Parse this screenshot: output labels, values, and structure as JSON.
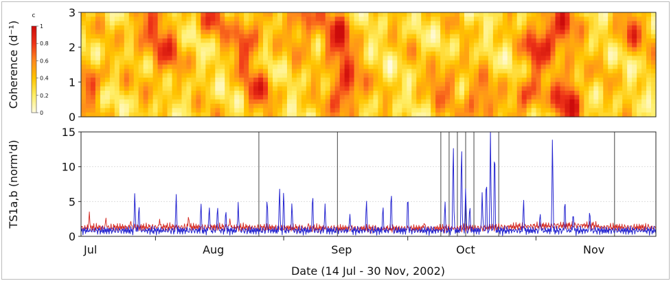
{
  "chart_data": [
    {
      "type": "heatmap",
      "ylabel": "Coherence (d⁻¹)",
      "y_ticks": [
        "0",
        "1",
        "2",
        "3"
      ],
      "ylim": [
        0,
        3
      ],
      "colorbar": {
        "label": "c",
        "ticks": [
          "0",
          "0.2",
          "0.4",
          "0.6",
          "0.8",
          "1"
        ],
        "range": [
          0,
          1
        ],
        "colors": [
          "#fffbe0",
          "#ffee66",
          "#ffc400",
          "#ff8a1e",
          "#ee3318",
          "#cc0b0b"
        ]
      },
      "x_range": [
        "2002-07-14",
        "2002-11-30"
      ],
      "note_cells": "coherence values shown as a dense patchy field, mostly 0.2-0.6 with high patches (0.8-1) around late Jul, mid Aug, early-mid Sep, mid Oct and early-mid Nov"
    },
    {
      "type": "line",
      "ylabel": "TS1a,b (norm'd)",
      "y_ticks": [
        "0",
        "5",
        "10",
        "15"
      ],
      "ylim": [
        0,
        15
      ],
      "grid": true,
      "xlabel": "Date (14 Jul - 30 Nov, 2002)",
      "x_ticks": [
        "Jul",
        "Aug",
        "Sep",
        "Oct",
        "Nov"
      ],
      "x_range": [
        "2002-07-14",
        "2002-11-30"
      ],
      "series": [
        {
          "color": "#d2241c",
          "baseline": 1.1,
          "peaks": [
            {
              "date": "2002-07-16",
              "value": 3.6
            },
            {
              "date": "2002-07-20",
              "value": 2.8
            },
            {
              "date": "2002-07-26",
              "value": 2.4
            },
            {
              "date": "2002-08-02",
              "value": 2.5
            },
            {
              "date": "2002-08-09",
              "value": 3.2
            },
            {
              "date": "2002-08-19",
              "value": 2.6
            },
            {
              "date": "2002-09-07",
              "value": 1.9
            },
            {
              "date": "2002-10-05",
              "value": 2.1
            },
            {
              "date": "2002-11-28",
              "value": 1.4
            }
          ]
        },
        {
          "color": "#2424d0",
          "baseline": 0.7,
          "peaks": [
            {
              "date": "2002-07-27",
              "value": 6.8
            },
            {
              "date": "2002-07-28",
              "value": 5.1
            },
            {
              "date": "2002-08-06",
              "value": 6.3
            },
            {
              "date": "2002-08-12",
              "value": 5.3
            },
            {
              "date": "2002-08-14",
              "value": 4.8
            },
            {
              "date": "2002-08-16",
              "value": 4.9
            },
            {
              "date": "2002-08-18",
              "value": 4.3
            },
            {
              "date": "2002-08-21",
              "value": 5.0
            },
            {
              "date": "2002-08-28",
              "value": 6.2
            },
            {
              "date": "2002-08-31",
              "value": 7.7
            },
            {
              "date": "2002-09-01",
              "value": 7.3
            },
            {
              "date": "2002-09-03",
              "value": 5.3
            },
            {
              "date": "2002-09-08",
              "value": 7.1
            },
            {
              "date": "2002-09-11",
              "value": 4.7
            },
            {
              "date": "2002-09-17",
              "value": 3.4
            },
            {
              "date": "2002-09-21",
              "value": 5.8
            },
            {
              "date": "2002-09-25",
              "value": 5.0
            },
            {
              "date": "2002-09-27",
              "value": 7.4
            },
            {
              "date": "2002-10-01",
              "value": 6.8
            },
            {
              "date": "2002-10-10",
              "value": 5.6
            },
            {
              "date": "2002-10-12",
              "value": 15.0
            },
            {
              "date": "2002-10-14",
              "value": 15.0
            },
            {
              "date": "2002-10-15",
              "value": 7.5
            },
            {
              "date": "2002-10-16",
              "value": 5.0
            },
            {
              "date": "2002-10-19",
              "value": 6.5
            },
            {
              "date": "2002-10-20",
              "value": 9.7
            },
            {
              "date": "2002-10-21",
              "value": 15.0
            },
            {
              "date": "2002-10-22",
              "value": 15.0
            },
            {
              "date": "2002-10-29",
              "value": 5.8
            },
            {
              "date": "2002-11-02",
              "value": 3.7
            },
            {
              "date": "2002-11-05",
              "value": 15.0
            },
            {
              "date": "2002-11-08",
              "value": 6.1
            },
            {
              "date": "2002-11-10",
              "value": 3.8
            },
            {
              "date": "2002-11-14",
              "value": 4.2
            }
          ]
        }
      ],
      "vertical_markers": {
        "color": "#444444",
        "dates": [
          "2002-08-26",
          "2002-09-14",
          "2002-10-09",
          "2002-10-11",
          "2002-10-13",
          "2002-10-15",
          "2002-10-17",
          "2002-10-23",
          "2002-11-20"
        ]
      }
    }
  ]
}
